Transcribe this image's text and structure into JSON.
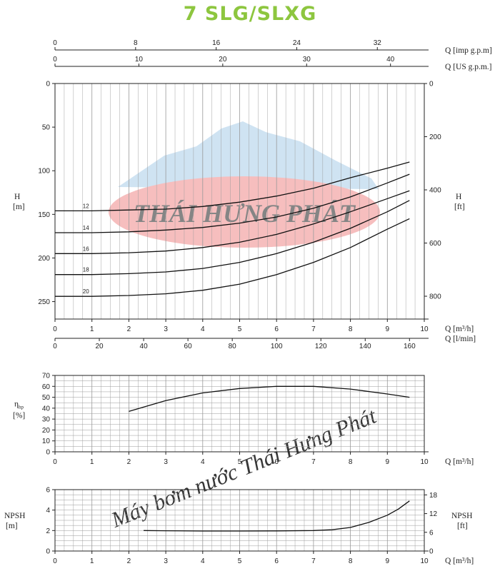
{
  "title": "7 SLG/SLXG",
  "watermark": {
    "logo_text": "THÁI HƯNG PHÁT",
    "diagonal_text": "Máy bơm nước Thái Hưng Phát",
    "colors": {
      "ellipse": "#f08a8a",
      "mountain": "#a9cde8",
      "diag": "#f3b4b4"
    }
  },
  "chart_data": [
    {
      "id": "head",
      "type": "line",
      "x_label": "Q [m³/h]",
      "xlim": [
        0,
        10
      ],
      "x_ticks": [
        0,
        1,
        2,
        3,
        4,
        5,
        6,
        7,
        8,
        9,
        10
      ],
      "secondary_x_axes": [
        {
          "label": "Q [l/min]",
          "ticks": [
            0,
            20,
            40,
            60,
            80,
            100,
            120,
            140,
            160
          ],
          "factor": 16.6667
        },
        {
          "label": "Q [US g.p.m.]",
          "ticks": [
            0,
            10,
            20,
            30,
            40
          ],
          "factor": 4.4029
        },
        {
          "label": "Q [imp g.p.m]",
          "ticks": [
            0,
            8,
            16,
            24,
            32
          ],
          "factor": 3.6662
        }
      ],
      "y_label": [
        "H",
        "[m]"
      ],
      "ylim": [
        0,
        260
      ],
      "y_ticks": [
        0,
        50,
        100,
        150,
        200,
        250
      ],
      "y2_label": [
        "H",
        "[ft]"
      ],
      "y2_ticks": [
        0,
        200,
        400,
        600,
        800
      ],
      "y2_factor": 3.2808,
      "grid": true,
      "series": [
        {
          "name": "20",
          "x": [
            0,
            1,
            2,
            3,
            4,
            5,
            6,
            7,
            8,
            9,
            9.6
          ],
          "y": [
            244,
            244,
            243,
            241,
            237,
            230,
            219,
            205,
            188,
            167,
            155
          ]
        },
        {
          "name": "18",
          "x": [
            0,
            1,
            2,
            3,
            4,
            5,
            6,
            7,
            8,
            9,
            9.6
          ],
          "y": [
            219,
            219,
            218,
            216,
            212,
            205,
            195,
            182,
            166,
            147,
            134
          ]
        },
        {
          "name": "16",
          "x": [
            0,
            1,
            2,
            3,
            4,
            5,
            6,
            7,
            8,
            9,
            9.6
          ],
          "y": [
            195,
            195,
            194,
            192,
            188,
            182,
            173,
            161,
            147,
            132,
            123
          ]
        },
        {
          "name": "14",
          "x": [
            0,
            1,
            2,
            3,
            4,
            5,
            6,
            7,
            8,
            9,
            9.6
          ],
          "y": [
            171,
            171,
            170,
            168,
            165,
            160,
            153,
            143,
            130,
            114,
            104
          ]
        },
        {
          "name": "12",
          "x": [
            0,
            1,
            2,
            3,
            4,
            5,
            6,
            7,
            8,
            9,
            9.6
          ],
          "y": [
            146,
            146,
            145,
            144,
            141,
            136,
            129,
            120,
            108,
            97,
            90
          ]
        }
      ]
    },
    {
      "id": "efficiency",
      "type": "line",
      "x_label": "Q [m³/h]",
      "xlim": [
        0,
        10
      ],
      "x_ticks": [
        0,
        1,
        2,
        3,
        4,
        5,
        6,
        7,
        8,
        9,
        10
      ],
      "y_label": [
        "η",
        "hp",
        "[%]"
      ],
      "ylim": [
        0,
        70
      ],
      "y_ticks": [
        0,
        10,
        20,
        30,
        40,
        50,
        60,
        70
      ],
      "grid": true,
      "series": [
        {
          "x": [
            2,
            3,
            4,
            5,
            6,
            7,
            8,
            9,
            9.6
          ],
          "y": [
            37,
            47,
            54,
            58,
            60,
            60,
            57.5,
            53,
            50
          ]
        }
      ]
    },
    {
      "id": "npsh",
      "type": "line",
      "x_label": "Q [m³/h]",
      "xlim": [
        0,
        10
      ],
      "x_ticks": [
        0,
        1,
        2,
        3,
        4,
        5,
        6,
        7,
        8,
        9,
        10
      ],
      "y_label": [
        "NPSH",
        "[m]"
      ],
      "ylim": [
        0,
        6
      ],
      "y_ticks": [
        0,
        2,
        4,
        6
      ],
      "y2_label": [
        "NPSH",
        "[ft]"
      ],
      "y2_ticks": [
        0,
        6,
        12,
        18
      ],
      "y2_factor": 3.2808,
      "grid": true,
      "series": [
        {
          "x": [
            2.4,
            3,
            4,
            5,
            6,
            7,
            7.5,
            8,
            8.5,
            9,
            9.3,
            9.6
          ],
          "y": [
            2,
            1.98,
            1.95,
            1.95,
            1.97,
            2,
            2.08,
            2.3,
            2.8,
            3.5,
            4.1,
            4.9
          ]
        }
      ]
    }
  ]
}
